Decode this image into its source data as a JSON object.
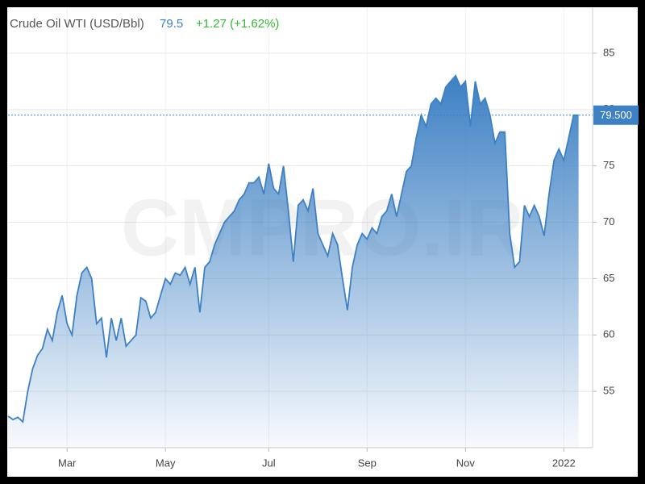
{
  "chart_data": {
    "type": "area",
    "title": "Crude Oil WTI (USD/Bbl)",
    "last": 79.5,
    "change": "+1.27 (+1.62%)",
    "price_line": {
      "value": 79.5,
      "label": "79.500"
    },
    "watermark": "CMPRO.IR",
    "color": "#3d80c4",
    "categories": [
      null,
      null,
      null,
      null,
      null,
      null,
      null,
      null,
      null,
      null,
      null,
      null,
      "Mar",
      null,
      null,
      null,
      null,
      null,
      null,
      null,
      null,
      null,
      null,
      null,
      null,
      null,
      null,
      null,
      null,
      null,
      null,
      null,
      "May",
      null,
      null,
      null,
      null,
      null,
      null,
      null,
      null,
      null,
      null,
      null,
      null,
      null,
      null,
      null,
      null,
      null,
      null,
      null,
      null,
      "Jul",
      null,
      null,
      null,
      null,
      null,
      null,
      null,
      null,
      null,
      null,
      null,
      null,
      null,
      null,
      null,
      null,
      null,
      null,
      null,
      "Sep",
      null,
      null,
      null,
      null,
      null,
      null,
      null,
      null,
      null,
      null,
      null,
      null,
      null,
      null,
      null,
      null,
      null,
      null,
      null,
      "Nov",
      null,
      null,
      null,
      null,
      null,
      null,
      null,
      null,
      null,
      null,
      null,
      null,
      null,
      null,
      null,
      null,
      null,
      null,
      null,
      "2022",
      null,
      null,
      null
    ],
    "values": [
      52.8,
      52.5,
      52.7,
      52.3,
      55.0,
      57.0,
      58.2,
      58.8,
      60.5,
      59.5,
      62.0,
      63.5,
      61.0,
      60.0,
      63.5,
      65.5,
      66.0,
      65.0,
      61.0,
      61.5,
      58.0,
      61.5,
      59.5,
      61.5,
      59.0,
      59.5,
      60.0,
      63.3,
      63.0,
      61.5,
      62.0,
      63.5,
      65.0,
      64.5,
      65.5,
      65.3,
      66.0,
      64.5,
      66.0,
      62.0,
      66.0,
      66.5,
      68.0,
      69.0,
      70.0,
      70.5,
      71.0,
      72.0,
      72.5,
      73.5,
      73.5,
      74.0,
      72.5,
      75.2,
      73.0,
      72.5,
      75.0,
      71.0,
      66.5,
      71.5,
      72.0,
      71.0,
      73.0,
      69.0,
      68.0,
      67.0,
      69.0,
      68.0,
      65.0,
      62.2,
      66.0,
      68.0,
      69.0,
      68.5,
      69.5,
      69.0,
      70.5,
      71.0,
      72.5,
      70.5,
      72.5,
      74.5,
      75.0,
      77.5,
      79.5,
      78.5,
      80.5,
      81.0,
      80.5,
      82.0,
      82.5,
      83.0,
      82.0,
      82.5,
      78.5,
      82.5,
      80.5,
      81.0,
      79.5,
      77.0,
      78.0,
      78.0,
      69.0,
      66.0,
      66.5,
      71.5,
      70.5,
      71.5,
      70.5,
      68.8,
      72.5,
      75.5,
      76.5,
      75.5,
      77.5,
      79.5,
      79.5
    ],
    "ylim": [
      50,
      89
    ],
    "yticks": [
      55,
      60,
      65,
      70,
      75,
      80,
      85
    ],
    "grid": true
  }
}
